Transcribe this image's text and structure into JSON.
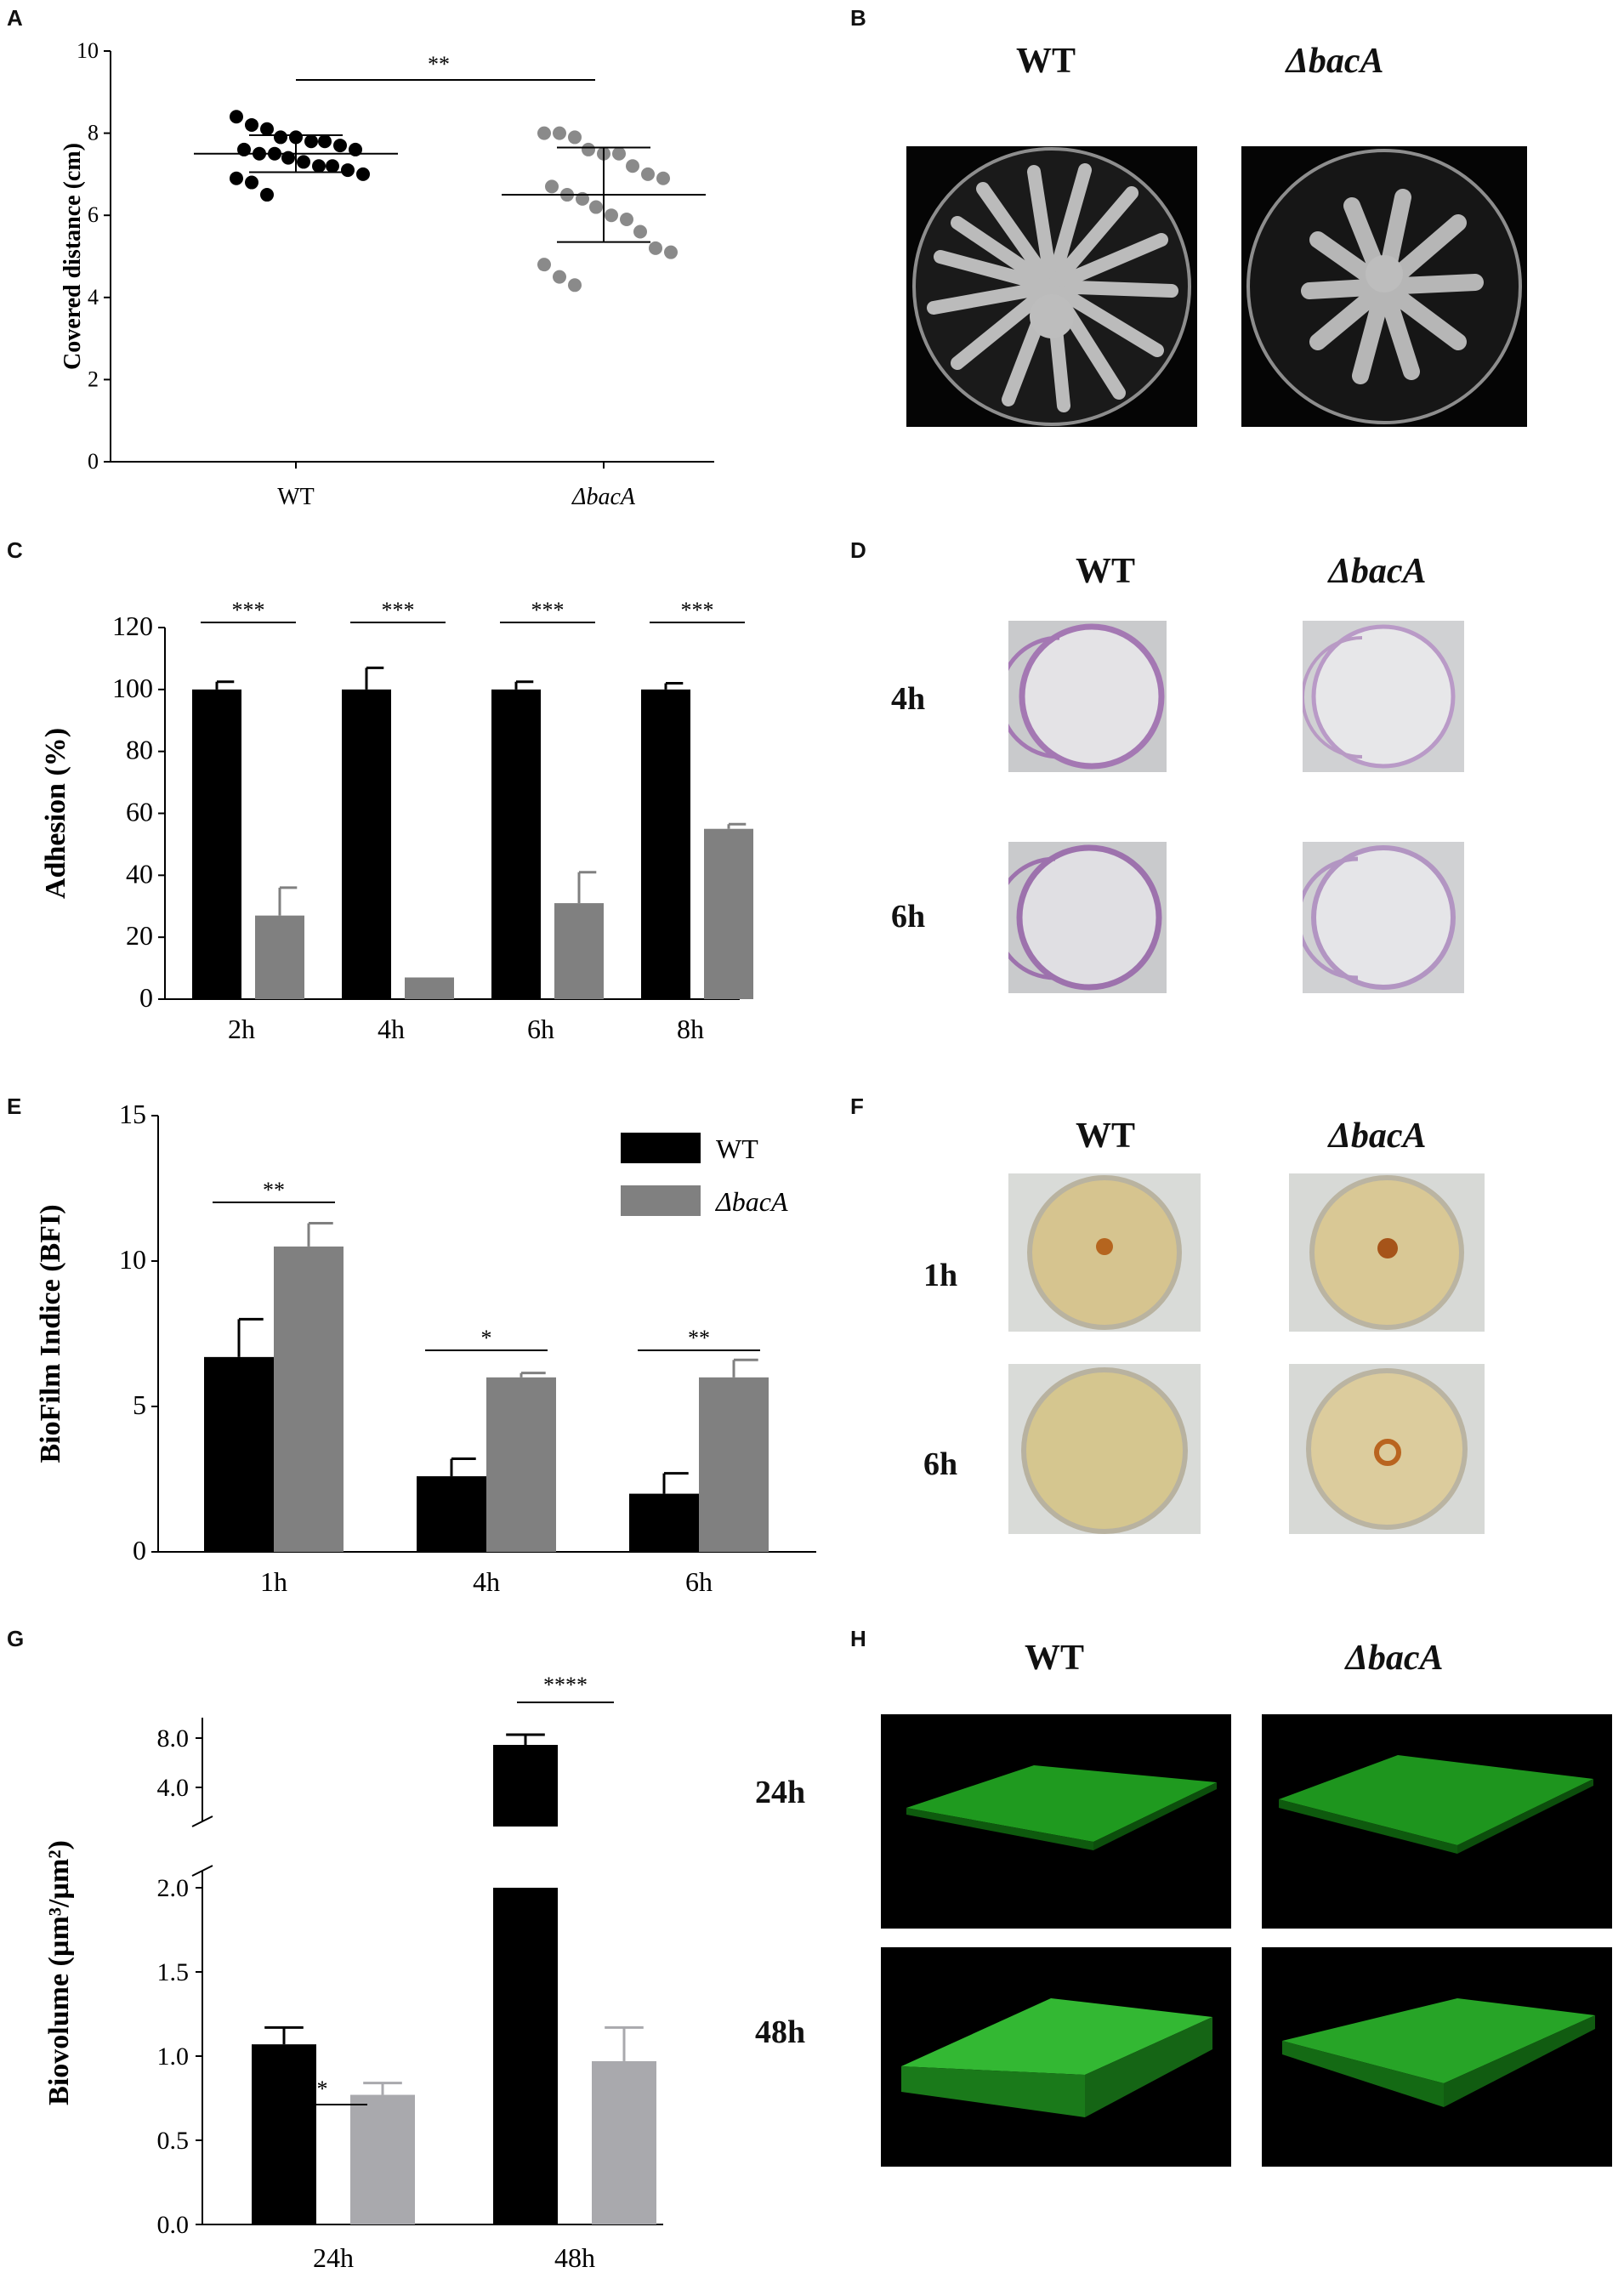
{
  "panels": {
    "A": "A",
    "B": "B",
    "C": "C",
    "D": "D",
    "E": "E",
    "F": "F",
    "G": "G",
    "H": "H"
  },
  "chart_data": [
    {
      "panel": "A",
      "type": "scatter",
      "ylabel": "Covered distance (cm)",
      "xlabel": "",
      "categories": [
        "WT",
        "ΔbacA"
      ],
      "yticks": [
        0,
        2,
        4,
        6,
        8,
        10
      ],
      "ylim": [
        0,
        10
      ],
      "series": [
        {
          "name": "",
          "color": "#000000",
          "values": [
            8.4,
            8.2,
            8.1,
            7.9,
            7.9,
            7.8,
            7.8,
            7.7,
            7.6,
            7.6,
            7.5,
            7.5,
            7.4,
            7.3,
            7.2,
            7.2,
            7.1,
            7.0,
            6.9,
            6.8,
            6.5
          ],
          "mean": 7.5,
          "sd": 0.45
        },
        {
          "name": "",
          "color": "#8a8a8a",
          "values": [
            8.0,
            8.0,
            7.9,
            7.6,
            7.5,
            7.5,
            7.2,
            7.0,
            6.9,
            6.7,
            6.5,
            6.4,
            6.2,
            6.0,
            5.9,
            5.6,
            5.2,
            5.1,
            4.8,
            4.5,
            4.3
          ],
          "mean": 6.5,
          "sd": 1.15
        }
      ],
      "significance": [
        {
          "between": [
            0,
            1
          ],
          "label": "**"
        }
      ]
    },
    {
      "panel": "C",
      "type": "bar",
      "ylabel": "Adhesion (%)",
      "categories": [
        "2h",
        "4h",
        "6h",
        "8h"
      ],
      "yticks": [
        0,
        20,
        40,
        60,
        80,
        100,
        120
      ],
      "ylim": [
        0,
        120
      ],
      "series": [
        {
          "name": "WT",
          "color": "#000000",
          "values": [
            100,
            100,
            100,
            100
          ],
          "err": [
            2.5,
            7,
            2.5,
            2
          ]
        },
        {
          "name": "ΔbacA",
          "color": "#808080",
          "values": [
            27,
            7,
            31,
            55
          ],
          "err": [
            9,
            0,
            10,
            1.5
          ]
        }
      ],
      "significance": [
        "***",
        "***",
        "***",
        "***"
      ]
    },
    {
      "panel": "E",
      "type": "bar",
      "ylabel": "BioFilm Indice (BFI)",
      "categories": [
        "1h",
        "4h",
        "6h"
      ],
      "yticks": [
        0,
        5,
        10,
        15
      ],
      "ylim": [
        0,
        15
      ],
      "legend": {
        "position": "top-right",
        "entries": [
          "WT",
          "ΔbacA"
        ]
      },
      "series": [
        {
          "name": "WT",
          "color": "#000000",
          "values": [
            6.7,
            2.6,
            2.0
          ],
          "err": [
            1.3,
            0.6,
            0.7
          ]
        },
        {
          "name": "ΔbacA",
          "color": "#808080",
          "values": [
            10.5,
            6.0,
            6.0
          ],
          "err": [
            0.8,
            0.15,
            0.6
          ]
        }
      ],
      "significance": [
        "**",
        "*",
        "**"
      ]
    },
    {
      "panel": "G",
      "type": "bar",
      "ylabel": "Biovolume (µm³/µm²)",
      "categories": [
        "24h",
        "48h"
      ],
      "yticks_lower": [
        "0.0",
        "0.5",
        "1.0",
        "1.5",
        "2.0"
      ],
      "yticks_upper": [
        "4.0",
        "8.0"
      ],
      "axis_break": {
        "lower": [
          0,
          2.0
        ],
        "upper": [
          2.0,
          8.0
        ]
      },
      "series": [
        {
          "name": "WT",
          "color": "#000000",
          "values": [
            1.07,
            7.3
          ],
          "err": [
            0.1,
            0.4
          ]
        },
        {
          "name": "ΔbacA",
          "color": "#a9a9ad",
          "values": [
            0.77,
            0.97
          ],
          "err": [
            0.07,
            0.2
          ]
        }
      ],
      "significance": [
        "*",
        "****"
      ]
    }
  ],
  "photos": {
    "B": {
      "cols": [
        "WT",
        "ΔbacA"
      ],
      "rows": []
    },
    "D": {
      "cols": [
        "WT",
        "ΔbacA"
      ],
      "rows": [
        "4h",
        "6h"
      ]
    },
    "F": {
      "cols": [
        "WT",
        "ΔbacA"
      ],
      "rows": [
        "1h",
        "6h"
      ]
    },
    "H": {
      "cols": [
        "WT",
        "ΔbacA"
      ],
      "rows": [
        "24h",
        "48h"
      ]
    }
  }
}
